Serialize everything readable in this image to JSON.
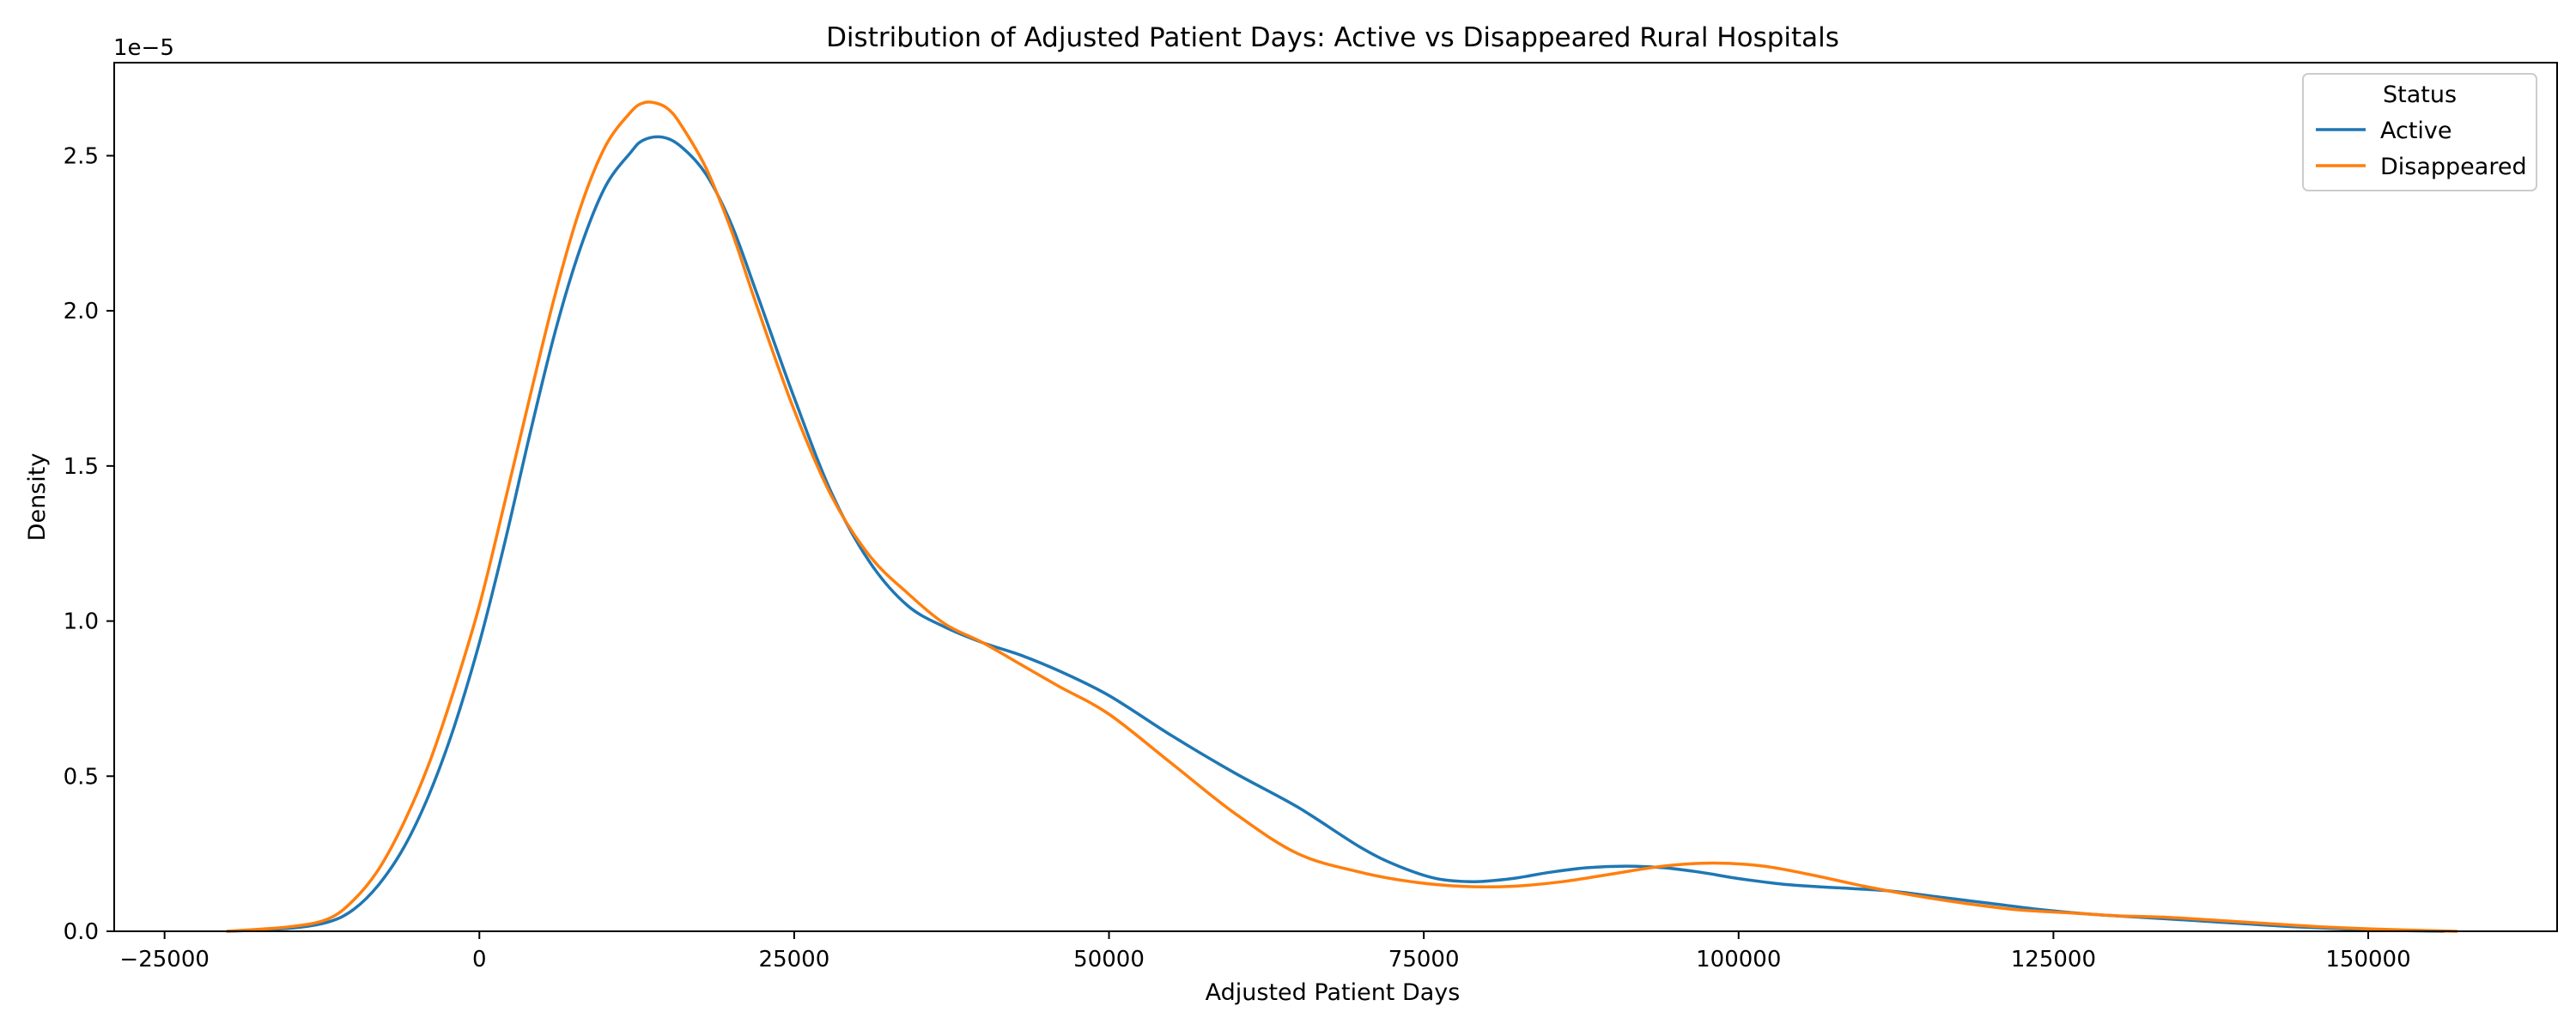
{
  "chart_data": {
    "type": "line",
    "title": "Distribution of Adjusted Patient Days: Active vs Disappeared Rural Hospitals",
    "xlabel": "Adjusted Patient Days",
    "ylabel": "Density",
    "y_offset_text": "1e−5",
    "xlim": [
      -29000,
      165000
    ],
    "ylim": [
      0,
      2.8
    ],
    "x_ticks": [
      -25000,
      0,
      25000,
      50000,
      75000,
      100000,
      125000,
      150000
    ],
    "x_tick_labels": [
      "−25000",
      "0",
      "25000",
      "50000",
      "75000",
      "100000",
      "125000",
      "150000"
    ],
    "y_ticks": [
      0,
      0.5,
      1.0,
      1.5,
      2.0,
      2.5
    ],
    "y_tick_labels": [
      "0.0",
      "0.5",
      "1.0",
      "1.5",
      "2.0",
      "2.5"
    ],
    "grid": false,
    "legend": {
      "title": "Status",
      "placement": "top-right"
    },
    "series": [
      {
        "name": "Active",
        "color": "#1f77b4",
        "x": [
          -20000,
          -15000,
          -12000,
          -10000,
          -8000,
          -6000,
          -4000,
          -2000,
          0,
          2000,
          4000,
          6000,
          8000,
          10000,
          12000,
          13000,
          14500,
          16000,
          18000,
          20000,
          22000,
          25000,
          28000,
          31000,
          34000,
          37000,
          40000,
          43000,
          46000,
          50000,
          55000,
          60000,
          65000,
          70000,
          73000,
          76000,
          79000,
          82000,
          85000,
          88000,
          91000,
          94000,
          97000,
          100000,
          104000,
          108000,
          112000,
          116000,
          120000,
          124000,
          128000,
          132000,
          136000,
          140000,
          144000,
          148000,
          152000,
          156000
        ],
        "values": [
          0.0,
          0.01,
          0.03,
          0.07,
          0.15,
          0.27,
          0.44,
          0.66,
          0.93,
          1.25,
          1.6,
          1.93,
          2.2,
          2.4,
          2.51,
          2.55,
          2.56,
          2.53,
          2.44,
          2.28,
          2.06,
          1.72,
          1.41,
          1.19,
          1.05,
          0.98,
          0.93,
          0.89,
          0.84,
          0.76,
          0.63,
          0.51,
          0.4,
          0.27,
          0.21,
          0.17,
          0.16,
          0.17,
          0.19,
          0.205,
          0.21,
          0.205,
          0.19,
          0.17,
          0.15,
          0.14,
          0.13,
          0.11,
          0.09,
          0.07,
          0.055,
          0.045,
          0.035,
          0.025,
          0.015,
          0.008,
          0.003,
          0.0
        ]
      },
      {
        "name": "Disappeared",
        "color": "#ff7f0e",
        "x": [
          -20000,
          -15000,
          -12000,
          -10000,
          -8000,
          -6000,
          -4000,
          -2000,
          0,
          2000,
          4000,
          6000,
          8000,
          10000,
          12000,
          13000,
          14000,
          15000,
          16000,
          18000,
          20000,
          22000,
          25000,
          28000,
          31000,
          34000,
          37000,
          40000,
          43000,
          46000,
          50000,
          55000,
          60000,
          65000,
          70000,
          74000,
          78000,
          82000,
          86000,
          90000,
          94000,
          98000,
          102000,
          106000,
          110000,
          114000,
          118000,
          122000,
          126000,
          130000,
          134000,
          138000,
          142000,
          146000,
          150000,
          154000,
          157000
        ],
        "values": [
          0.0,
          0.015,
          0.04,
          0.1,
          0.2,
          0.35,
          0.54,
          0.78,
          1.05,
          1.38,
          1.72,
          2.05,
          2.33,
          2.53,
          2.64,
          2.67,
          2.67,
          2.65,
          2.6,
          2.46,
          2.26,
          2.02,
          1.68,
          1.4,
          1.21,
          1.09,
          0.99,
          0.93,
          0.86,
          0.79,
          0.7,
          0.54,
          0.38,
          0.25,
          0.19,
          0.16,
          0.145,
          0.145,
          0.16,
          0.185,
          0.21,
          0.22,
          0.21,
          0.18,
          0.145,
          0.115,
          0.09,
          0.07,
          0.06,
          0.05,
          0.045,
          0.035,
          0.025,
          0.015,
          0.008,
          0.003,
          0.0
        ]
      }
    ]
  }
}
